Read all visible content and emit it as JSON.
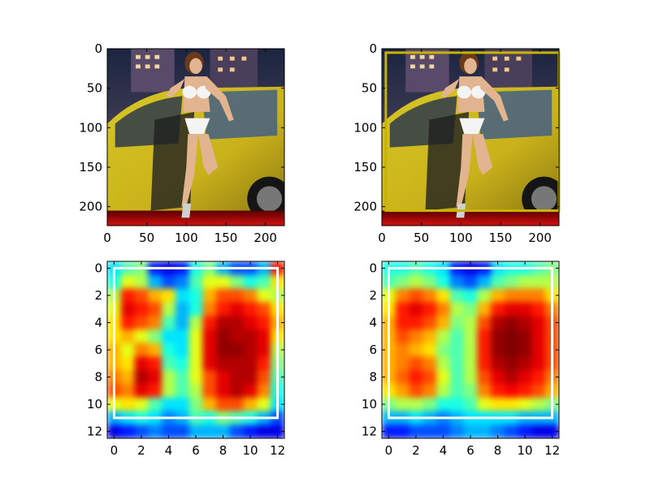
{
  "chart_data": [
    {
      "type": "image",
      "content": "photo",
      "xlim": [
        0,
        224
      ],
      "ylim": [
        224,
        0
      ],
      "xticks": [
        0,
        50,
        100,
        150,
        200
      ],
      "yticks": [
        0,
        50,
        100,
        150,
        200
      ],
      "overlay_box": null
    },
    {
      "type": "image",
      "content": "photo",
      "xlim": [
        0,
        224
      ],
      "ylim": [
        224,
        0
      ],
      "xticks": [
        0,
        50,
        100,
        150,
        200
      ],
      "yticks": [
        0,
        50,
        100,
        150,
        200
      ],
      "overlay_box": {
        "x0": 5,
        "y0": 5,
        "x1": 224,
        "y1": 205,
        "color": "#c8b400"
      }
    },
    {
      "type": "heatmap",
      "colormap": "jet",
      "xlim": [
        -0.5,
        12.5
      ],
      "ylim": [
        12.5,
        -0.5
      ],
      "xticks": [
        0,
        2,
        4,
        6,
        8,
        10,
        12
      ],
      "yticks": [
        0,
        2,
        4,
        6,
        8,
        10,
        12
      ],
      "values": [
        [
          0.35,
          0.45,
          0.5,
          0.15,
          0.1,
          0.15,
          0.4,
          0.5,
          0.3,
          0.2,
          0.2,
          0.3,
          0.85
        ],
        [
          0.4,
          0.6,
          0.55,
          0.3,
          0.2,
          0.25,
          0.45,
          0.6,
          0.6,
          0.5,
          0.4,
          0.45,
          0.65
        ],
        [
          0.55,
          0.85,
          0.8,
          0.7,
          0.65,
          0.35,
          0.4,
          0.7,
          0.8,
          0.8,
          0.75,
          0.6,
          0.55
        ],
        [
          0.6,
          0.9,
          0.85,
          0.8,
          0.55,
          0.3,
          0.4,
          0.75,
          0.85,
          0.9,
          0.85,
          0.8,
          0.65
        ],
        [
          0.65,
          0.85,
          0.8,
          0.75,
          0.45,
          0.3,
          0.55,
          0.85,
          0.95,
          0.95,
          0.9,
          0.85,
          0.7
        ],
        [
          0.65,
          0.7,
          0.6,
          0.5,
          0.35,
          0.35,
          0.6,
          0.9,
          0.98,
          0.95,
          0.95,
          0.9,
          0.65
        ],
        [
          0.7,
          0.6,
          0.75,
          0.7,
          0.4,
          0.35,
          0.6,
          0.9,
          0.98,
          0.98,
          0.95,
          0.9,
          0.55
        ],
        [
          0.7,
          0.65,
          0.9,
          0.85,
          0.45,
          0.4,
          0.6,
          0.9,
          0.95,
          0.95,
          0.95,
          0.85,
          0.5
        ],
        [
          0.75,
          0.7,
          0.95,
          0.9,
          0.55,
          0.45,
          0.6,
          0.8,
          0.9,
          0.95,
          0.95,
          0.8,
          0.45
        ],
        [
          0.8,
          0.75,
          0.9,
          0.85,
          0.55,
          0.45,
          0.55,
          0.8,
          0.9,
          0.95,
          0.9,
          0.75,
          0.4
        ],
        [
          0.6,
          0.65,
          0.6,
          0.45,
          0.35,
          0.35,
          0.5,
          0.7,
          0.8,
          0.8,
          0.7,
          0.6,
          0.35
        ],
        [
          0.3,
          0.35,
          0.4,
          0.35,
          0.25,
          0.3,
          0.45,
          0.4,
          0.5,
          0.45,
          0.4,
          0.3,
          0.2
        ],
        [
          0.1,
          0.15,
          0.2,
          0.25,
          0.2,
          0.2,
          0.3,
          0.3,
          0.3,
          0.2,
          0.15,
          0.1,
          0.1
        ]
      ],
      "overlay_box": {
        "x0": 0,
        "y0": 0,
        "x1": 12,
        "y1": 11,
        "color": "#ffffff"
      }
    },
    {
      "type": "heatmap",
      "colormap": "jet",
      "xlim": [
        -0.5,
        12.5
      ],
      "ylim": [
        12.5,
        -0.5
      ],
      "xticks": [
        0,
        2,
        4,
        6,
        8,
        10,
        12
      ],
      "yticks": [
        0,
        2,
        4,
        6,
        8,
        10,
        12
      ],
      "values": [
        [
          0.4,
          0.4,
          0.45,
          0.4,
          0.35,
          0.15,
          0.1,
          0.15,
          0.35,
          0.4,
          0.4,
          0.45,
          0.5
        ],
        [
          0.45,
          0.5,
          0.55,
          0.5,
          0.4,
          0.25,
          0.2,
          0.3,
          0.45,
          0.5,
          0.55,
          0.55,
          0.55
        ],
        [
          0.6,
          0.75,
          0.8,
          0.75,
          0.65,
          0.45,
          0.4,
          0.55,
          0.7,
          0.75,
          0.75,
          0.75,
          0.65
        ],
        [
          0.65,
          0.85,
          0.9,
          0.85,
          0.75,
          0.55,
          0.5,
          0.7,
          0.85,
          0.9,
          0.9,
          0.85,
          0.75
        ],
        [
          0.7,
          0.85,
          0.85,
          0.8,
          0.7,
          0.5,
          0.55,
          0.8,
          0.95,
          0.98,
          0.95,
          0.9,
          0.8
        ],
        [
          0.7,
          0.8,
          0.75,
          0.7,
          0.55,
          0.45,
          0.55,
          0.85,
          0.98,
          1.0,
          0.98,
          0.9,
          0.8
        ],
        [
          0.7,
          0.75,
          0.7,
          0.65,
          0.5,
          0.45,
          0.55,
          0.85,
          0.98,
          1.0,
          0.98,
          0.9,
          0.8
        ],
        [
          0.7,
          0.75,
          0.8,
          0.75,
          0.55,
          0.45,
          0.55,
          0.85,
          0.95,
          0.98,
          0.95,
          0.9,
          0.8
        ],
        [
          0.7,
          0.78,
          0.85,
          0.8,
          0.6,
          0.45,
          0.55,
          0.8,
          0.9,
          0.95,
          0.9,
          0.85,
          0.75
        ],
        [
          0.65,
          0.72,
          0.8,
          0.75,
          0.55,
          0.45,
          0.5,
          0.75,
          0.85,
          0.88,
          0.85,
          0.8,
          0.7
        ],
        [
          0.5,
          0.55,
          0.55,
          0.5,
          0.4,
          0.4,
          0.45,
          0.6,
          0.65,
          0.65,
          0.6,
          0.55,
          0.5
        ],
        [
          0.3,
          0.3,
          0.35,
          0.3,
          0.25,
          0.3,
          0.35,
          0.35,
          0.35,
          0.35,
          0.3,
          0.3,
          0.3
        ],
        [
          0.15,
          0.15,
          0.2,
          0.2,
          0.2,
          0.25,
          0.3,
          0.3,
          0.25,
          0.2,
          0.15,
          0.1,
          0.1
        ]
      ],
      "overlay_box": {
        "x0": 0,
        "y0": 0,
        "x1": 12,
        "y1": 11,
        "color": "#ffffff"
      }
    }
  ]
}
